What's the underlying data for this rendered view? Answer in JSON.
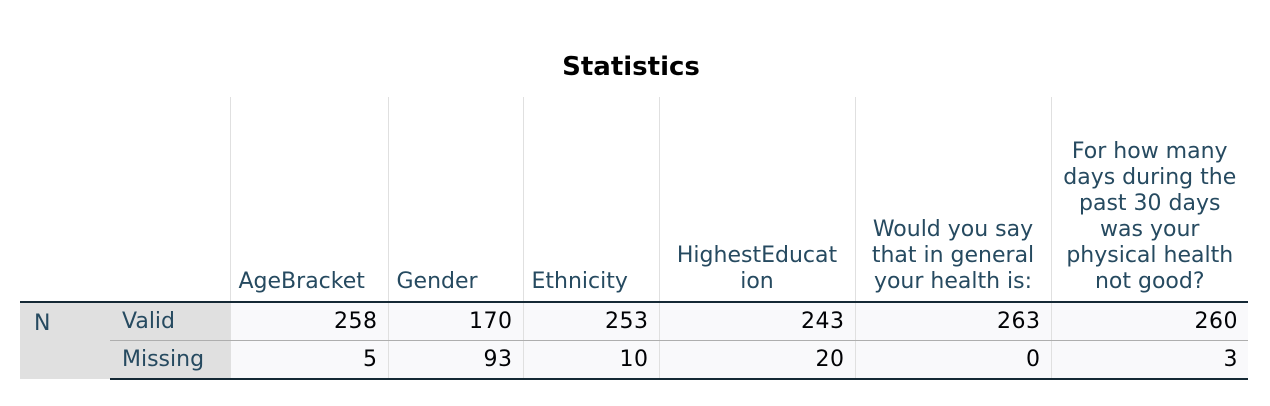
{
  "title": "Statistics",
  "columns": [
    "AgeBracket",
    "Gender",
    "Ethnicity",
    "HighestEducat ion",
    "Would you say that in general your health is:",
    "For how many days during the past 30 days was your physical health not good?"
  ],
  "row_group": "N",
  "rows": [
    {
      "label": "Valid",
      "values": [
        "258",
        "170",
        "253",
        "243",
        "263",
        "260"
      ]
    },
    {
      "label": "Missing",
      "values": [
        "5",
        "93",
        "10",
        "20",
        "0",
        "3"
      ]
    }
  ]
}
